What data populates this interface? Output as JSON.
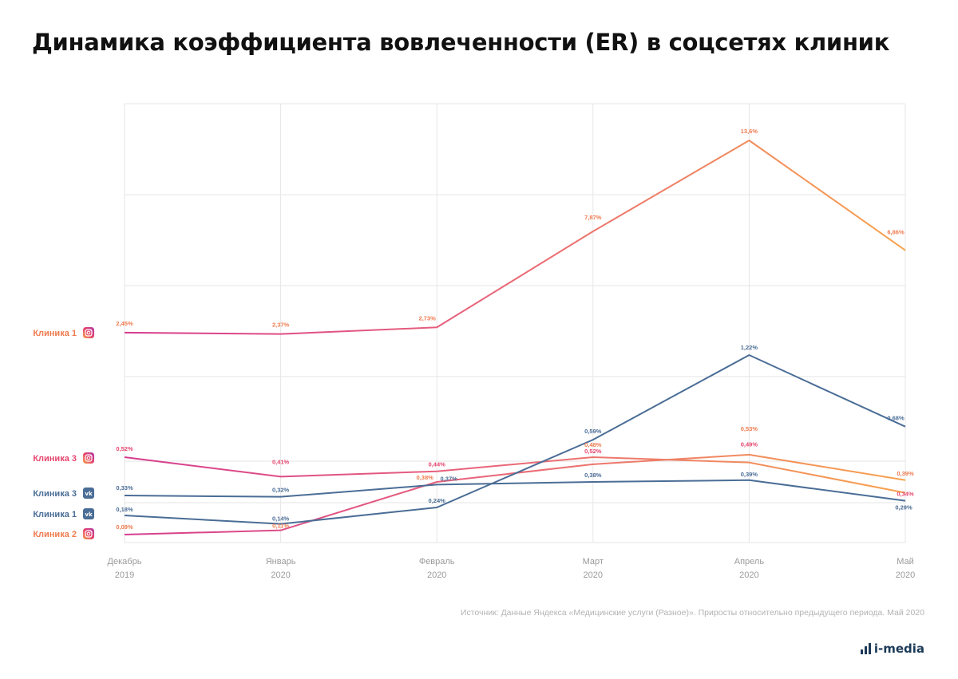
{
  "title": "Динамика коэффициента вовлеченности (ER) в соцсетях клиник",
  "source": "Источник: Данные Яндекса «Медицинские услуги (Разное)». Приросты относительно предыдущего периода. Май 2020",
  "logo_text": "i-media",
  "chart_data": {
    "type": "line",
    "title": "Динамика коэффициента вовлеченности (ER) в соцсетях клиник",
    "x": [
      {
        "month": "Декабрь",
        "year": "2019"
      },
      {
        "month": "Январь",
        "year": "2020"
      },
      {
        "month": "Февраль",
        "year": "2020"
      },
      {
        "month": "Март",
        "year": "2020"
      },
      {
        "month": "Апрель",
        "year": "2020"
      },
      {
        "month": "Май",
        "year": "2020"
      }
    ],
    "grid": true,
    "series": [
      {
        "name": "Клиника 1",
        "network": "instagram",
        "values": [
          2.45,
          2.37,
          2.73,
          7.87,
          13.6,
          6.86
        ],
        "labels": [
          "2,45%",
          "2,37%",
          "2,73%",
          "7,87%",
          "13,6%",
          "6,86%"
        ],
        "colors": [
          "#d63c8f",
          "#e8637a",
          "#f7a34d"
        ],
        "label_color": "#ef7b4f"
      },
      {
        "name": "Клиника 3",
        "network": "instagram",
        "values": [
          0.52,
          0.41,
          0.44,
          0.52,
          0.49,
          0.34
        ],
        "labels": [
          "0,52%",
          "0,41%",
          "0,44%",
          "0,52%",
          "0,49%",
          "0,34%"
        ],
        "colors": [
          "#d63c8f",
          "#e8637a",
          "#f7a34d"
        ],
        "label_color": "#e6466e"
      },
      {
        "name": "Клиника 2",
        "network": "instagram",
        "values": [
          0.09,
          0.11,
          0.38,
          0.48,
          0.53,
          0.39
        ],
        "labels": [
          "0,09%",
          "0,11%",
          "0,38%",
          "0,48%",
          "0,53%",
          "0,39%"
        ],
        "colors": [
          "#d63c8f",
          "#e8637a",
          "#f7a34d"
        ],
        "label_color": "#ef7b4f"
      },
      {
        "name": "Клиника 3",
        "network": "vk",
        "values": [
          0.33,
          0.32,
          0.37,
          0.38,
          0.39,
          0.29
        ],
        "labels": [
          "0,33%",
          "0,32%",
          "0,37%",
          "0,38%",
          "0,39%",
          "0,29%"
        ],
        "colors": [
          "#4a6d96"
        ],
        "label_color": "#4a6d96"
      },
      {
        "name": "Клиника 1",
        "network": "vk",
        "values": [
          0.18,
          0.14,
          0.24,
          0.59,
          1.22,
          0.68
        ],
        "labels": [
          "0,18%",
          "0,14%",
          "0,24%",
          "0,59%",
          "1,22%",
          "0,68%"
        ],
        "colors": [
          "#4a6d96"
        ],
        "label_color": "#4a6d96"
      }
    ],
    "legend": [
      {
        "name": "Клиника 1",
        "network": "instagram",
        "color": "#ef7b4f"
      },
      {
        "name": "Клиника 3",
        "network": "instagram",
        "color": "#e6466e"
      },
      {
        "name": "Клиника 3",
        "network": "vk",
        "color": "#4a6d96"
      },
      {
        "name": "Клиника 1",
        "network": "vk",
        "color": "#4a6d96"
      },
      {
        "name": "Клиника 2",
        "network": "instagram",
        "color": "#ef7b4f"
      }
    ],
    "legend_placement": "left",
    "icons": {
      "instagram": "instagram-icon",
      "vk": "vk-icon"
    }
  }
}
